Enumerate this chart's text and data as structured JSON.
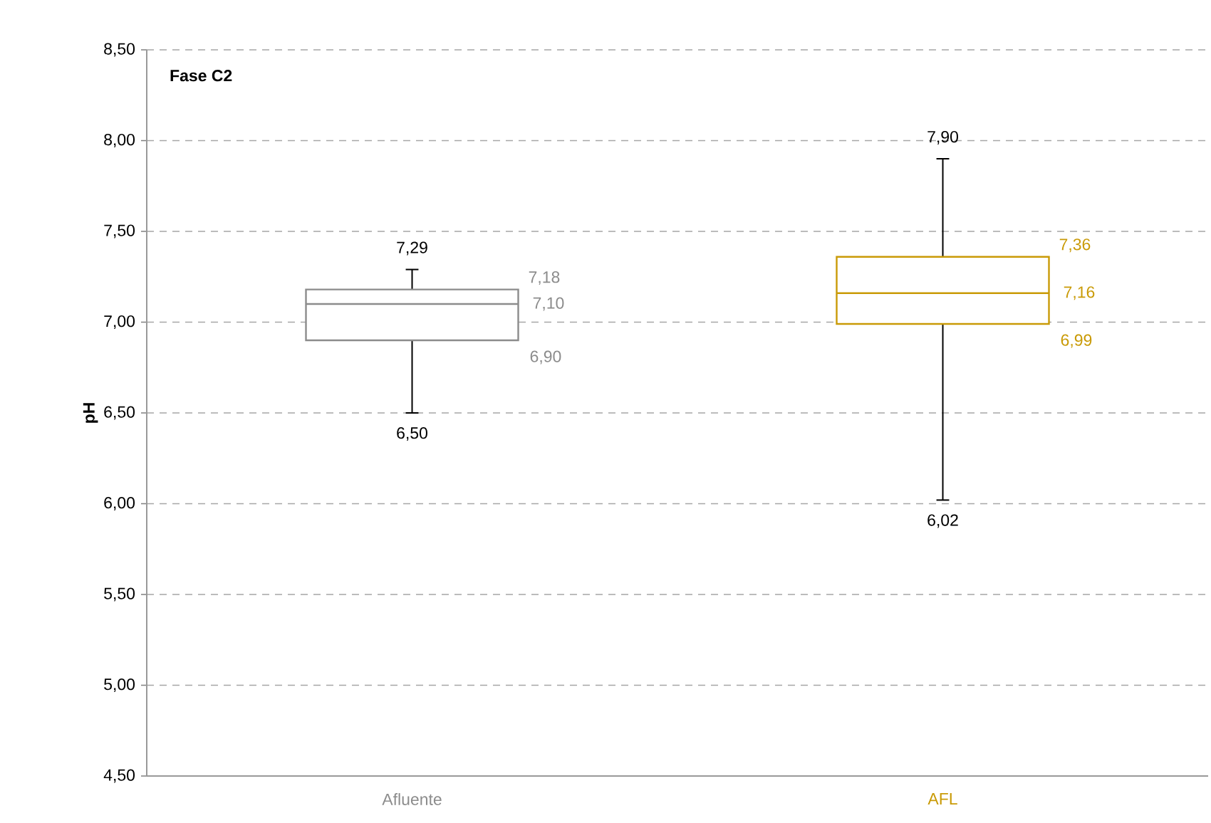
{
  "chart_data": {
    "type": "box",
    "ylabel": "pH",
    "annotations": [
      "Fase C2"
    ],
    "categories": [
      "Afluente",
      "AFL"
    ],
    "colors": [
      "#8c8c8c",
      "#c99a06"
    ],
    "boxes": [
      {
        "low": 6.5,
        "q1": 6.9,
        "median": 7.1,
        "q3": 7.18,
        "high": 7.29
      },
      {
        "low": 6.02,
        "q1": 6.99,
        "median": 7.16,
        "q3": 7.36,
        "high": 7.9
      }
    ],
    "value_labels": [
      [
        "6,50",
        "6,90",
        "7,10",
        "7,18",
        "7,29"
      ],
      [
        "6,02",
        "6,99",
        "7,16",
        "7,36",
        "7,90"
      ]
    ],
    "ylim": [
      4.5,
      8.5
    ],
    "yticks": [
      {
        "value": 4.5,
        "label": "4,50"
      },
      {
        "value": 5.0,
        "label": "5,00"
      },
      {
        "value": 5.5,
        "label": "5,50"
      },
      {
        "value": 6.0,
        "label": "6,00"
      },
      {
        "value": 6.5,
        "label": "6,50"
      },
      {
        "value": 7.0,
        "label": "7,00"
      },
      {
        "value": 7.5,
        "label": "7,50"
      },
      {
        "value": 8.0,
        "label": "8,00"
      },
      {
        "value": 8.5,
        "label": "8,50"
      }
    ],
    "grid": "y"
  }
}
